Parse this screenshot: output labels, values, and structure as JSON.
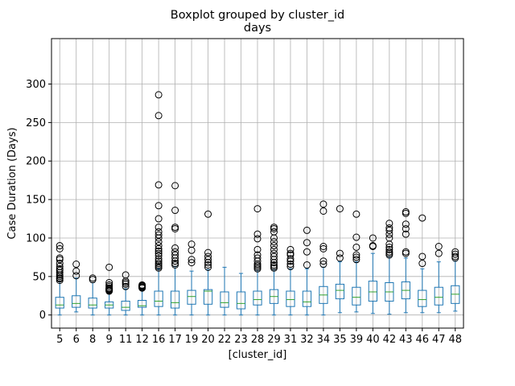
{
  "chart_data": {
    "type": "boxplot",
    "suptitle": "Boxplot grouped by cluster_id",
    "title": "days",
    "xlabel": "[cluster_id]",
    "ylabel": "Case Duration (Days)",
    "ylim": [
      -15,
      300
    ],
    "yticks": [
      0,
      50,
      100,
      150,
      200,
      250,
      300
    ],
    "grid": true,
    "colors": {
      "box": "#1f77b4",
      "median": "#2ca02c",
      "flier": "#000000",
      "grid": "#b0b0b0"
    },
    "boxes": [
      {
        "category": "5",
        "whislo": 0,
        "q1": 9,
        "median": 13,
        "q3": 23,
        "whishi": 44,
        "fliers": [
          45,
          47,
          48,
          50,
          52,
          55,
          58,
          60,
          63,
          67,
          72,
          74,
          86,
          90
        ]
      },
      {
        "category": "6",
        "whislo": 4,
        "q1": 10,
        "median": 15,
        "q3": 25,
        "whishi": 48,
        "fliers": [
          51,
          57,
          66
        ]
      },
      {
        "category": "8",
        "whislo": 0,
        "q1": 9,
        "median": 13,
        "q3": 22,
        "whishi": 42,
        "fliers": [
          46,
          48
        ]
      },
      {
        "category": "9",
        "whislo": 0,
        "q1": 9,
        "median": 13,
        "q3": 17,
        "whishi": 29,
        "fliers": [
          31,
          32,
          33,
          34,
          35,
          37,
          39,
          42,
          62
        ]
      },
      {
        "category": "11",
        "whislo": 0,
        "q1": 6,
        "median": 10,
        "q3": 18,
        "whishi": 34,
        "fliers": [
          37,
          40,
          42,
          44,
          52
        ]
      },
      {
        "category": "12",
        "whislo": 0,
        "q1": 10,
        "median": 12,
        "q3": 19,
        "whishi": 34,
        "fliers": [
          35,
          36,
          37,
          38,
          39
        ]
      },
      {
        "category": "16",
        "whislo": 0,
        "q1": 11,
        "median": 18,
        "q3": 31,
        "whishi": 60,
        "fliers": [
          61,
          63,
          65,
          67,
          70,
          73,
          77,
          80,
          83,
          86,
          90,
          95,
          100,
          104,
          108,
          114,
          125,
          142,
          169,
          259,
          286
        ]
      },
      {
        "category": "17",
        "whislo": 0,
        "q1": 9,
        "median": 16,
        "q3": 31,
        "whishi": 63,
        "fliers": [
          65,
          67,
          70,
          74,
          78,
          82,
          87,
          112,
          114,
          136,
          168
        ]
      },
      {
        "category": "19",
        "whislo": 0,
        "q1": 14,
        "median": 24,
        "q3": 32,
        "whishi": 57,
        "fliers": [
          68,
          72,
          84,
          92
        ]
      },
      {
        "category": "20",
        "whislo": 0,
        "q1": 14,
        "median": 31,
        "q3": 33,
        "whishi": 59,
        "fliers": [
          62,
          65,
          68,
          72,
          76,
          81,
          131
        ]
      },
      {
        "category": "22",
        "whislo": 0,
        "q1": 10,
        "median": 16,
        "q3": 30,
        "whishi": 62,
        "fliers": []
      },
      {
        "category": "23",
        "whislo": 0,
        "q1": 8,
        "median": 15,
        "q3": 30,
        "whishi": 54,
        "fliers": []
      },
      {
        "category": "28",
        "whislo": 0,
        "q1": 13,
        "median": 20,
        "q3": 31,
        "whishi": 58,
        "fliers": [
          60,
          62,
          64,
          66,
          70,
          74,
          78,
          85,
          99,
          105,
          138
        ]
      },
      {
        "category": "29",
        "whislo": 0,
        "q1": 15,
        "median": 24,
        "q3": 33,
        "whishi": 59,
        "fliers": [
          61,
          63,
          65,
          68,
          72,
          76,
          80,
          85,
          90,
          95,
          100,
          108,
          112,
          114
        ]
      },
      {
        "category": "31",
        "whislo": 0,
        "q1": 11,
        "median": 20,
        "q3": 31,
        "whishi": 60,
        "fliers": [
          63,
          66,
          70,
          73,
          78,
          80,
          85
        ]
      },
      {
        "category": "32",
        "whislo": 0,
        "q1": 11,
        "median": 17,
        "q3": 31,
        "whishi": 60,
        "fliers": [
          65,
          82,
          94,
          110
        ]
      },
      {
        "category": "34",
        "whislo": 0,
        "q1": 15,
        "median": 26,
        "q3": 37,
        "whishi": 62,
        "fliers": [
          66,
          70,
          86,
          89,
          135,
          144
        ]
      },
      {
        "category": "35",
        "whislo": 3,
        "q1": 21,
        "median": 32,
        "q3": 40,
        "whishi": 69,
        "fliers": [
          74,
          80,
          138
        ]
      },
      {
        "category": "39",
        "whislo": 4,
        "q1": 13,
        "median": 23,
        "q3": 36,
        "whishi": 69,
        "fliers": [
          72,
          75,
          78,
          88,
          101,
          131
        ]
      },
      {
        "category": "40",
        "whislo": 2,
        "q1": 18,
        "median": 30,
        "q3": 44,
        "whishi": 80,
        "fliers": [
          89,
          90,
          100
        ]
      },
      {
        "category": "42",
        "whislo": 1,
        "q1": 18,
        "median": 30,
        "q3": 42,
        "whishi": 76,
        "fliers": [
          78,
          80,
          82,
          85,
          88,
          92,
          100,
          105,
          110,
          113,
          119
        ]
      },
      {
        "category": "43",
        "whislo": 3,
        "q1": 21,
        "median": 32,
        "q3": 43,
        "whishi": 74,
        "fliers": [
          80,
          82,
          105,
          112,
          118,
          132,
          134
        ]
      },
      {
        "category": "46",
        "whislo": 3,
        "q1": 11,
        "median": 20,
        "q3": 32,
        "whishi": 60,
        "fliers": [
          67,
          76,
          126
        ]
      },
      {
        "category": "47",
        "whislo": 3,
        "q1": 13,
        "median": 23,
        "q3": 36,
        "whishi": 69,
        "fliers": [
          80,
          89
        ]
      },
      {
        "category": "48",
        "whislo": 5,
        "q1": 15,
        "median": 27,
        "q3": 38,
        "whishi": 70,
        "fliers": [
          74,
          76,
          79,
          82
        ]
      }
    ]
  }
}
